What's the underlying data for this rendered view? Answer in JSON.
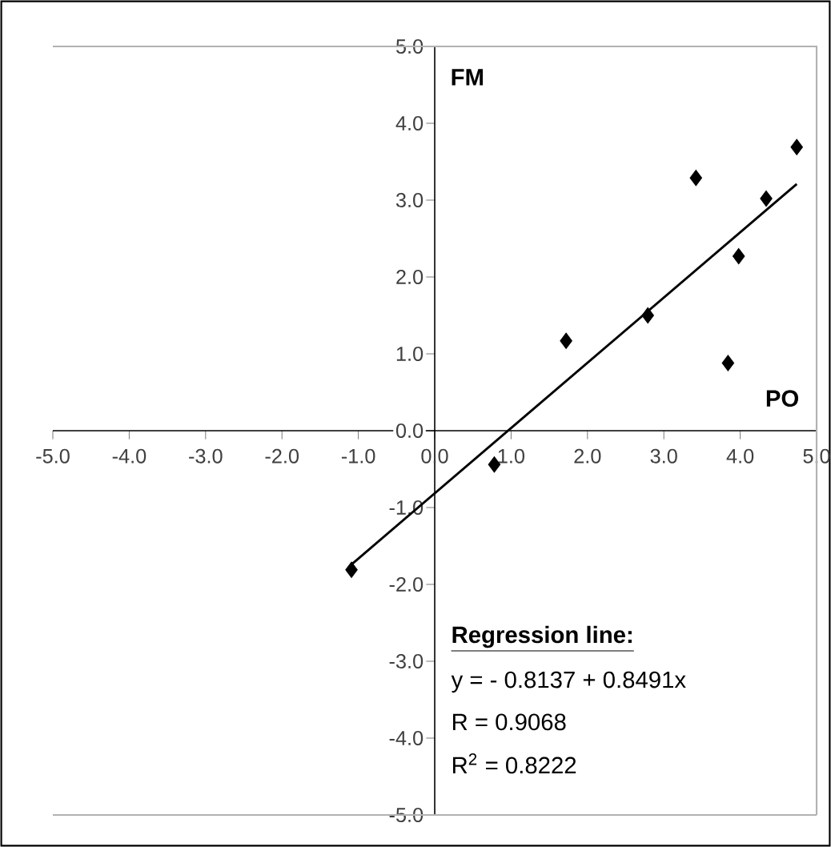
{
  "chart_data": {
    "type": "scatter",
    "xlim": [
      -5,
      5
    ],
    "ylim": [
      -5,
      5
    ],
    "xticks": [
      {
        "value": -5,
        "label": "-5.0"
      },
      {
        "value": -4,
        "label": "-4.0"
      },
      {
        "value": -3,
        "label": "-3.0"
      },
      {
        "value": -2,
        "label": "-2.0"
      },
      {
        "value": -1,
        "label": "-1.0"
      },
      {
        "value": 0,
        "label": "0.0"
      },
      {
        "value": 1,
        "label": "1.0"
      },
      {
        "value": 2,
        "label": "2.0"
      },
      {
        "value": 3,
        "label": "3.0"
      },
      {
        "value": 4,
        "label": "4.0"
      },
      {
        "value": 5,
        "label": "5.0"
      }
    ],
    "yticks": [
      {
        "value": -5,
        "label": "-5.0"
      },
      {
        "value": -4,
        "label": "-4.0"
      },
      {
        "value": -3,
        "label": "-3.0"
      },
      {
        "value": -2,
        "label": "-2.0"
      },
      {
        "value": -1,
        "label": "-1.0"
      },
      {
        "value": 0,
        "label": "0.0"
      },
      {
        "value": 1,
        "label": "1.0"
      },
      {
        "value": 2,
        "label": "2.0"
      },
      {
        "value": 3,
        "label": "3.0"
      },
      {
        "value": 4,
        "label": "4.0"
      },
      {
        "value": 5,
        "label": "5.0"
      }
    ],
    "marker": "diamond",
    "series": [
      {
        "color": "#000000",
        "x": [
          -1.09,
          0.78,
          1.72,
          2.79,
          3.42,
          3.84,
          3.98,
          4.34,
          4.74
        ],
        "values": [
          -1.81,
          -0.44,
          1.17,
          1.5,
          3.29,
          0.88,
          2.27,
          3.02,
          3.69
        ]
      },
      {
        "type": "line",
        "color": "#000000",
        "marker": "none",
        "line_style": "solid",
        "x": [
          -1.09,
          4.74
        ],
        "values": [
          -1.74,
          3.21
        ]
      }
    ],
    "annotations": [
      "FM",
      "PO",
      "Regression line:",
      "y = - 0.8137 + 0.8491x",
      "R  = 0.9068",
      "R$^{2}$ = 0.8222"
    ]
  }
}
